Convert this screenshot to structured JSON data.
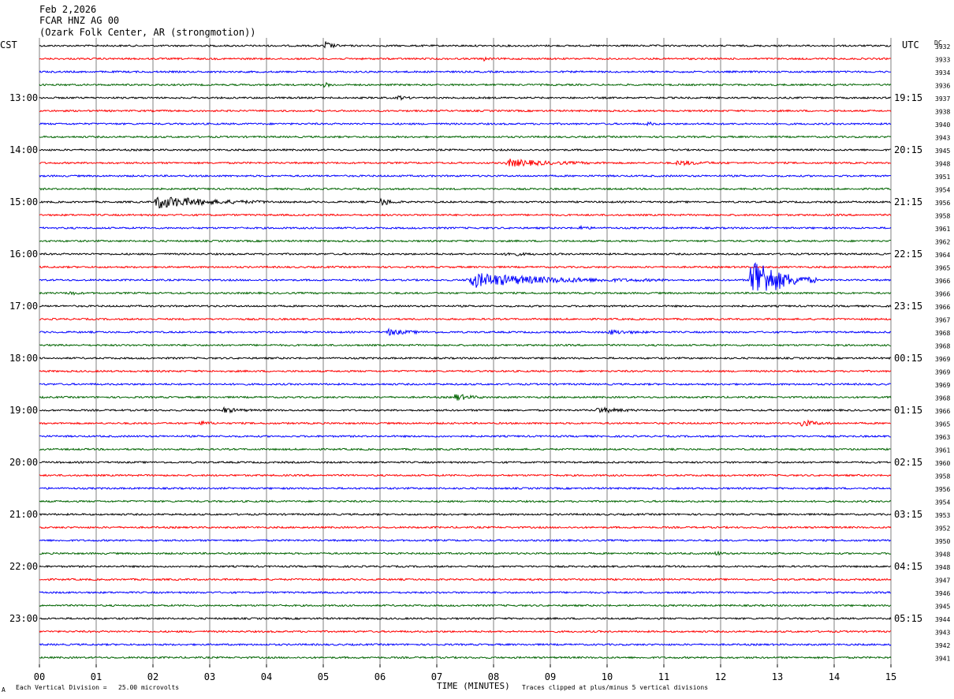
{
  "header": {
    "date": "Feb 2,2026",
    "station": "FCAR HNZ AG 00",
    "location": "(Ozark Folk Center, AR (strongmotion))"
  },
  "left_tz": "CST",
  "right_tz": "UTC",
  "dc_label": "DC",
  "footer": {
    "corner_mark": "A",
    "scale_note": "Each Vertical Division =   25.00 microvolts",
    "xlabel": "TIME (MINUTES)",
    "clip_note": "Traces clipped at plus/minus 5 vertical divisions"
  },
  "colors": {
    "trace_cycle": [
      "#000000",
      "#ff0000",
      "#0000ff",
      "#006400"
    ],
    "grid": "#808080"
  },
  "chart_data": {
    "type": "line",
    "xlabel": "TIME (MINUTES)",
    "x_ticks": [
      "00",
      "01",
      "02",
      "03",
      "04",
      "05",
      "06",
      "07",
      "08",
      "09",
      "10",
      "11",
      "12",
      "13",
      "14",
      "15"
    ],
    "xlim": [
      0,
      15
    ],
    "n_traces": 48,
    "left_hour_labels": [
      "13:00",
      "14:00",
      "15:00",
      "16:00",
      "17:00",
      "18:00",
      "19:00",
      "20:00",
      "21:00",
      "22:00",
      "23:00"
    ],
    "right_hour_labels": [
      "19:15",
      "20:15",
      "21:15",
      "22:15",
      "23:15",
      "00:15",
      "01:15",
      "02:15",
      "03:15",
      "04:15",
      "05:15"
    ],
    "dc_offsets": [
      "3932",
      "3933",
      "3934",
      "3936",
      "3937",
      "3938",
      "3940",
      "3943",
      "3945",
      "3948",
      "3951",
      "3954",
      "3956",
      "3958",
      "3961",
      "3962",
      "3964",
      "3965",
      "3966",
      "3966",
      "3966",
      "3967",
      "3968",
      "3968",
      "3969",
      "3969",
      "3969",
      "3968",
      "3966",
      "3965",
      "3963",
      "3961",
      "3960",
      "3958",
      "3956",
      "3954",
      "3953",
      "3952",
      "3950",
      "3948",
      "3948",
      "3947",
      "3946",
      "3945",
      "3944",
      "3943",
      "3942",
      "3941"
    ],
    "events": [
      {
        "trace": 0,
        "minute": 5.0,
        "amp": 8,
        "dur": 0.3
      },
      {
        "trace": 1,
        "minute": 7.8,
        "amp": 3,
        "dur": 0.2
      },
      {
        "trace": 3,
        "minute": 5.0,
        "amp": 3,
        "dur": 0.3
      },
      {
        "trace": 4,
        "minute": 6.3,
        "amp": 3,
        "dur": 0.3
      },
      {
        "trace": 6,
        "minute": 10.7,
        "amp": 3,
        "dur": 0.2
      },
      {
        "trace": 9,
        "minute": 8.2,
        "amp": 5,
        "dur": 1.8
      },
      {
        "trace": 9,
        "minute": 11.2,
        "amp": 3,
        "dur": 1.0
      },
      {
        "trace": 12,
        "minute": 2.0,
        "amp": 9,
        "dur": 2.2
      },
      {
        "trace": 12,
        "minute": 6.0,
        "amp": 6,
        "dur": 0.4
      },
      {
        "trace": 14,
        "minute": 9.5,
        "amp": 3,
        "dur": 0.3
      },
      {
        "trace": 16,
        "minute": 8.2,
        "amp": 3,
        "dur": 0.6
      },
      {
        "trace": 18,
        "minute": 7.5,
        "amp": 10,
        "dur": 3.5
      },
      {
        "trace": 18,
        "minute": 12.5,
        "amp": 40,
        "dur": 1.2
      },
      {
        "trace": 19,
        "minute": 0.5,
        "amp": 3,
        "dur": 0.3
      },
      {
        "trace": 22,
        "minute": 6.1,
        "amp": 4,
        "dur": 0.9
      },
      {
        "trace": 22,
        "minute": 10.0,
        "amp": 3,
        "dur": 0.9
      },
      {
        "trace": 27,
        "minute": 7.3,
        "amp": 5,
        "dur": 0.6
      },
      {
        "trace": 28,
        "minute": 3.2,
        "amp": 4,
        "dur": 0.6
      },
      {
        "trace": 28,
        "minute": 9.8,
        "amp": 4,
        "dur": 0.8
      },
      {
        "trace": 29,
        "minute": 13.4,
        "amp": 5,
        "dur": 0.6
      },
      {
        "trace": 29,
        "minute": 2.8,
        "amp": 3,
        "dur": 0.4
      },
      {
        "trace": 39,
        "minute": 11.9,
        "amp": 4,
        "dur": 0.2
      }
    ]
  }
}
